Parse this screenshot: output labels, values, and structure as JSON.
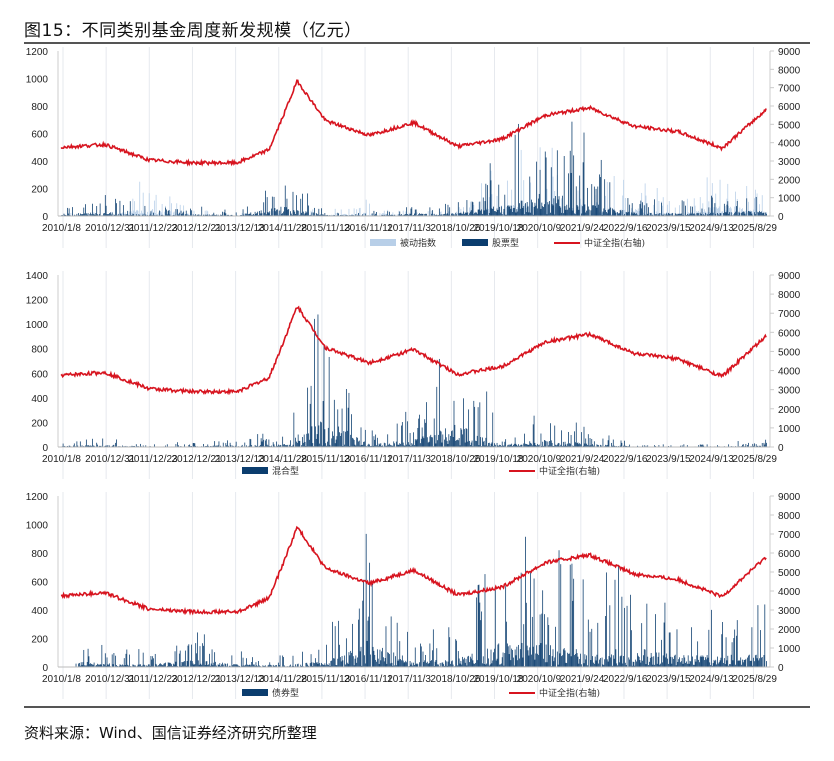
{
  "title": "图15：不同类别基金周度新发规模（亿元）",
  "source": "资料来源：Wind、国信证券经济研究所整理",
  "colors": {
    "passive_index": "#b8cfe8",
    "equity": "#0b3d6e",
    "hybrid": "#0b3d6e",
    "bond": "#0b3d6e",
    "csi_all_share": "#d7141f",
    "grid": "#e6e9ee"
  },
  "x_tick_labels": [
    "2010/1/8",
    "2010/12/31",
    "2011/12/23",
    "2012/12/21",
    "2013/12/13",
    "2014/11/28",
    "2015/11/13",
    "2016/11/11",
    "2017/11/3",
    "2018/10/26",
    "2019/10/18",
    "2020/10/9",
    "2021/9/24",
    "2022/9/16",
    "2023/9/15",
    "2024/9/13",
    "2025/8/29"
  ],
  "chart_data": [
    {
      "type": "bar",
      "title": "被动指数 & 股票型 weekly new issuance",
      "xlabel": "",
      "ylabel": "亿元",
      "ylim": [
        0,
        1200
      ],
      "y_ticks": [
        0,
        200,
        400,
        600,
        800,
        1000,
        1200
      ],
      "y2lim": [
        0,
        9000
      ],
      "y2_ticks": [
        0,
        1000,
        2000,
        3000,
        4000,
        5000,
        6000,
        7000,
        8000,
        9000
      ],
      "legend": [
        "被动指数",
        "股票型",
        "中证全指(右轴)"
      ],
      "legend_position": "bottom",
      "categories": [
        "2010/1/8",
        "2010/12/31",
        "2011/12/23",
        "2012/12/21",
        "2013/12/13",
        "2014/11/28",
        "2015/11/13",
        "2016/11/11",
        "2017/11/3",
        "2018/10/26",
        "2019/10/18",
        "2020/10/9",
        "2021/9/24",
        "2022/9/16",
        "2023/9/15",
        "2024/9/13",
        "2025/8/29"
      ],
      "series": [
        {
          "name": "被动指数",
          "values": [
            30,
            40,
            330,
            70,
            30,
            60,
            40,
            150,
            30,
            60,
            460,
            550,
            200,
            350,
            120,
            440,
            240
          ]
        },
        {
          "name": "股票型",
          "values": [
            90,
            175,
            60,
            80,
            40,
            400,
            50,
            30,
            110,
            150,
            450,
            990,
            560,
            170,
            120,
            150,
            240
          ]
        },
        {
          "name": "中证全指(右轴)",
          "axis": "right",
          "values": [
            3750,
            3900,
            3050,
            2900,
            2900,
            3900,
            5200,
            4400,
            5100,
            3800,
            4200,
            5500,
            5900,
            4900,
            4600,
            3700,
            5800
          ]
        }
      ]
    },
    {
      "type": "bar",
      "title": "混合型 weekly new issuance",
      "ylim": [
        0,
        1400
      ],
      "y_ticks": [
        0,
        200,
        400,
        600,
        800,
        1000,
        1200,
        1400
      ],
      "y2lim": [
        0,
        9000
      ],
      "y2_ticks": [
        0,
        1000,
        2000,
        3000,
        4000,
        5000,
        6000,
        7000,
        8000,
        9000
      ],
      "legend": [
        "混合型",
        "中证全指(右轴)"
      ],
      "legend_position": "bottom",
      "categories": [
        "2010/1/8",
        "2010/12/31",
        "2011/12/23",
        "2012/12/21",
        "2013/12/13",
        "2014/11/28",
        "2015/11/13",
        "2016/11/11",
        "2017/11/3",
        "2018/10/26",
        "2019/10/18",
        "2020/10/9",
        "2021/9/24",
        "2022/9/16",
        "2023/9/15",
        "2024/9/13",
        "2025/8/29"
      ],
      "series": [
        {
          "name": "混合型",
          "values": [
            65,
            120,
            20,
            50,
            90,
            130,
            1310,
            120,
            380,
            1050,
            110,
            350,
            150,
            30,
            20,
            40,
            60
          ]
        },
        {
          "name": "中证全指(右轴)",
          "axis": "right",
          "values": [
            3750,
            3900,
            3050,
            2900,
            2900,
            3900,
            5200,
            4400,
            5100,
            3800,
            4200,
            5500,
            5900,
            4900,
            4600,
            3700,
            5800
          ]
        }
      ]
    },
    {
      "type": "bar",
      "title": "债券型 weekly new issuance",
      "ylim": [
        0,
        1200
      ],
      "y_ticks": [
        0,
        200,
        400,
        600,
        800,
        1000,
        1200
      ],
      "y2lim": [
        0,
        9000
      ],
      "y2_ticks": [
        0,
        1000,
        2000,
        3000,
        4000,
        5000,
        6000,
        7000,
        8000,
        9000
      ],
      "legend": [
        "债券型",
        "中证全指(右轴)"
      ],
      "legend_position": "bottom",
      "categories": [
        "2010/1/8",
        "2010/12/31",
        "2011/12/23",
        "2012/12/21",
        "2013/12/13",
        "2014/11/28",
        "2015/11/13",
        "2016/11/11",
        "2017/11/3",
        "2018/10/26",
        "2019/10/18",
        "2020/10/9",
        "2021/9/24",
        "2022/9/16",
        "2023/9/15",
        "2024/9/13",
        "2025/8/29"
      ],
      "series": [
        {
          "name": "债券型",
          "values": [
            280,
            160,
            110,
            300,
            110,
            80,
            240,
            1095,
            240,
            330,
            970,
            960,
            580,
            770,
            470,
            480,
            500
          ]
        },
        {
          "name": "中证全指(右轴)",
          "axis": "right",
          "values": [
            3750,
            3900,
            3050,
            2900,
            2900,
            3900,
            5200,
            4400,
            5100,
            3800,
            4200,
            5500,
            5900,
            4900,
            4600,
            3700,
            5800
          ]
        }
      ]
    }
  ],
  "legends": {
    "c1": [
      "被动指数",
      "股票型",
      "中证全指(右轴)"
    ],
    "c2": [
      "混合型",
      "中证全指(右轴)"
    ],
    "c3": [
      "债券型",
      "中证全指(右轴)"
    ]
  }
}
